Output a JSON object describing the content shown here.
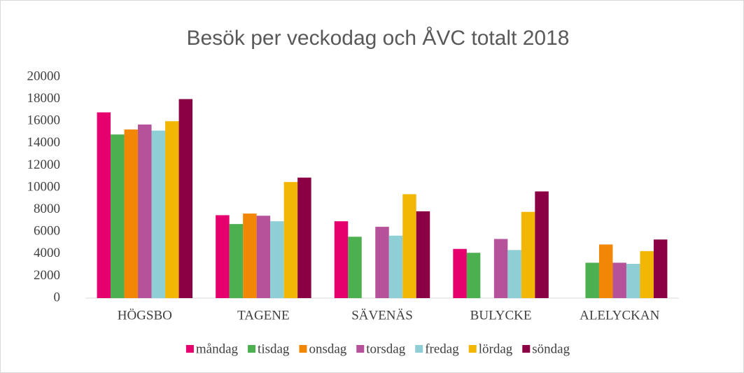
{
  "chart_data": {
    "type": "bar",
    "title": "Besök per veckodag och ÅVC totalt 2018",
    "categories": [
      "HÖGSBO",
      "TAGENE",
      "SÄVENÄS",
      "BULYCKE",
      "ALELYCKAN"
    ],
    "series": [
      {
        "name": "måndag",
        "color": "#e6006e",
        "values": [
          16800,
          7500,
          6950,
          4450,
          null
        ]
      },
      {
        "name": "tisdag",
        "color": "#4caf50",
        "values": [
          14800,
          6700,
          5550,
          4100,
          3200
        ]
      },
      {
        "name": "onsdag",
        "color": "#f28705",
        "values": [
          15250,
          7650,
          null,
          null,
          4850
        ]
      },
      {
        "name": "torsdag",
        "color": "#b5529a",
        "values": [
          15700,
          7450,
          6450,
          5350,
          3200
        ]
      },
      {
        "name": "fredag",
        "color": "#8ecfd6",
        "values": [
          15150,
          6950,
          5650,
          4350,
          3100
        ]
      },
      {
        "name": "lördag",
        "color": "#f2b705",
        "values": [
          16000,
          10500,
          9400,
          7800,
          4250
        ]
      },
      {
        "name": "söndag",
        "color": "#8b0045",
        "values": [
          18000,
          10900,
          7850,
          9650,
          5300
        ]
      }
    ],
    "ylim": [
      0,
      20000
    ],
    "yticks": [
      0,
      2000,
      4000,
      6000,
      8000,
      10000,
      12000,
      14000,
      16000,
      18000,
      20000
    ],
    "grid": false,
    "legend": "bottom"
  }
}
